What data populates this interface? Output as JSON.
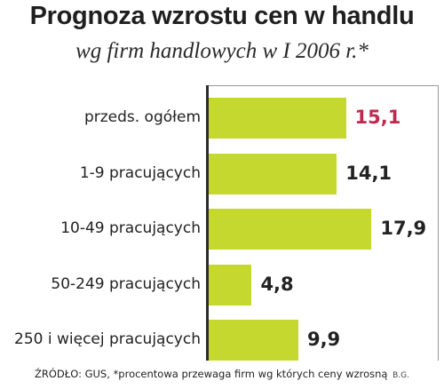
{
  "colors": {
    "bar": "#c5d82f",
    "highlight": "#c0284f",
    "text": "#222222"
  },
  "chart_data": {
    "type": "bar",
    "orientation": "horizontal",
    "title": "Prognoza wzrostu cen w handlu",
    "subtitle": "wg firm handlowych w I  2006 r.*",
    "categories": [
      "przeds. ogółem",
      "1-9 pracujących",
      "10-49 pracujących",
      "50-249 pracujących",
      "250 i więcej pracujących"
    ],
    "values": [
      15.1,
      14.1,
      17.9,
      4.8,
      9.9
    ],
    "value_labels": [
      "15,1",
      "14,1",
      "17,9",
      "4,8",
      "9,9"
    ],
    "highlighted": [
      true,
      false,
      false,
      false,
      false
    ],
    "xlim": [
      0,
      22
    ],
    "grid": false,
    "legend": "none"
  },
  "footer": {
    "source": "ŹRÓDŁO: GUS, *procentowa przewaga firm wg których ceny wzrosną",
    "credit": "B.G."
  }
}
